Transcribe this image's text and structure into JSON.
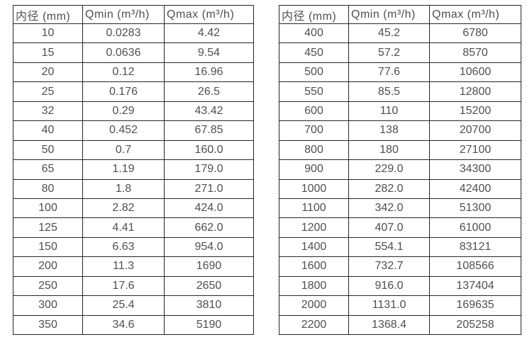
{
  "colors": {
    "background": "#ffffff",
    "border": "#262626",
    "text": "#4f4f4f"
  },
  "tables": [
    {
      "name": "flow-table-small-diameters",
      "headers": [
        "内径 (mm)",
        "Qmin (m³/h)",
        "Qmax (m³/h)"
      ],
      "rows": [
        [
          "10",
          "0.0283",
          "4.42"
        ],
        [
          "15",
          "0.0636",
          "9.54"
        ],
        [
          "20",
          "0.12",
          "16.96"
        ],
        [
          "25",
          "0.176",
          "26.5"
        ],
        [
          "32",
          "0.29",
          "43.42"
        ],
        [
          "40",
          "0.452",
          "67.85"
        ],
        [
          "50",
          "0.7",
          "160.0"
        ],
        [
          "65",
          "1.19",
          "179.0"
        ],
        [
          "80",
          "1.8",
          "271.0"
        ],
        [
          "100",
          "2.82",
          "424.0"
        ],
        [
          "125",
          "4.41",
          "662.0"
        ],
        [
          "150",
          "6.63",
          "954.0"
        ],
        [
          "200",
          "11.3",
          "1690"
        ],
        [
          "250",
          "17.6",
          "2650"
        ],
        [
          "300",
          "25.4",
          "3810"
        ],
        [
          "350",
          "34.6",
          "5190"
        ]
      ]
    },
    {
      "name": "flow-table-large-diameters",
      "headers": [
        "内径 (mm)",
        "Qmin (m³/h)",
        "Qmax (m³/h)"
      ],
      "rows": [
        [
          "400",
          "45.2",
          "6780"
        ],
        [
          "450",
          "57.2",
          "8570"
        ],
        [
          "500",
          "77.6",
          "10600"
        ],
        [
          "550",
          "85.5",
          "12800"
        ],
        [
          "600",
          "110",
          "15200"
        ],
        [
          "700",
          "138",
          "20700"
        ],
        [
          "800",
          "180",
          "27100"
        ],
        [
          "900",
          "229.0",
          "34300"
        ],
        [
          "1000",
          "282.0",
          "42400"
        ],
        [
          "1100",
          "342.0",
          "51300"
        ],
        [
          "1200",
          "407.0",
          "61000"
        ],
        [
          "1400",
          "554.1",
          "83121"
        ],
        [
          "1600",
          "732.7",
          "108566"
        ],
        [
          "1800",
          "916.0",
          "137404"
        ],
        [
          "2000",
          "1131.0",
          "169635"
        ],
        [
          "2200",
          "1368.4",
          "205258"
        ]
      ]
    }
  ]
}
